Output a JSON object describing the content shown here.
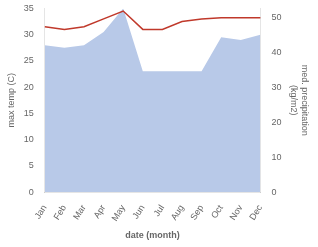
{
  "chart_data": {
    "type": "line",
    "categories": [
      "Jan",
      "Feb",
      "Mar",
      "Apr",
      "May",
      "Jun",
      "Jul",
      "Aug",
      "Sep",
      "Oct",
      "Nov",
      "Dec"
    ],
    "series": [
      {
        "type": "area",
        "color": "#b8c9e8",
        "values": [
          28.0,
          27.5,
          28.0,
          30.5,
          35.0,
          23.0,
          23.0,
          23.0,
          23.0,
          29.5,
          29.0,
          30.0
        ]
      },
      {
        "type": "line",
        "color": "#c0392b",
        "values": [
          31.5,
          31.0,
          31.5,
          33.0,
          34.5,
          31.0,
          31.0,
          32.5,
          33.0,
          33.2,
          33.2,
          33.2
        ]
      }
    ],
    "xlabel": "date (month)",
    "ylabel": "max temp (C)",
    "y2label": "med. precipitation\n(kg/m2)",
    "ylim": [
      0,
      35
    ],
    "yticks": [
      0,
      5,
      10,
      15,
      20,
      25,
      30,
      35
    ],
    "y2lim": [
      0,
      52.5
    ],
    "y2ticks": [
      0,
      10,
      20,
      30,
      40,
      50
    ],
    "grid": false
  }
}
